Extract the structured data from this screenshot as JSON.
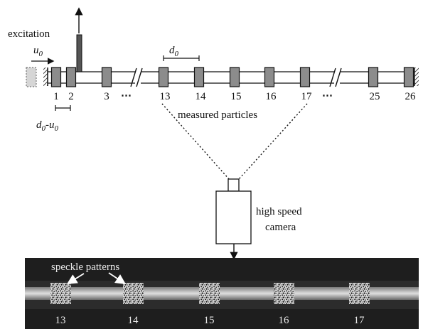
{
  "labels": {
    "excitation": "excitation",
    "u0_sym": "u",
    "u0_sub": "0",
    "d0_sym": "d",
    "d0_sub": "0",
    "d0u0_a": "d",
    "d0u0_a_sub": "0",
    "d0u0_dash": "-",
    "d0u0_b": "u",
    "d0u0_b_sub": "0",
    "measured": "measured particles",
    "camera_line1": "high speed",
    "camera_line2": "camera",
    "speckle": "speckle patterns",
    "ellipsis_1": "⋯",
    "ellipsis_2": "⋯"
  },
  "particles": [
    {
      "num": "1"
    },
    {
      "num": "2"
    },
    {
      "num": "3"
    },
    {
      "num": "13"
    },
    {
      "num": "14"
    },
    {
      "num": "15"
    },
    {
      "num": "16"
    },
    {
      "num": "17"
    },
    {
      "num": "25"
    },
    {
      "num": "26"
    }
  ],
  "photo_particles": [
    {
      "num": "13"
    },
    {
      "num": "14"
    },
    {
      "num": "15"
    },
    {
      "num": "16"
    },
    {
      "num": "17"
    }
  ],
  "colors": {
    "particle_fill": "#8c8c8c",
    "line": "#111111",
    "photo_bg": "#1e1e1e",
    "rod": "#c9c9c9"
  }
}
